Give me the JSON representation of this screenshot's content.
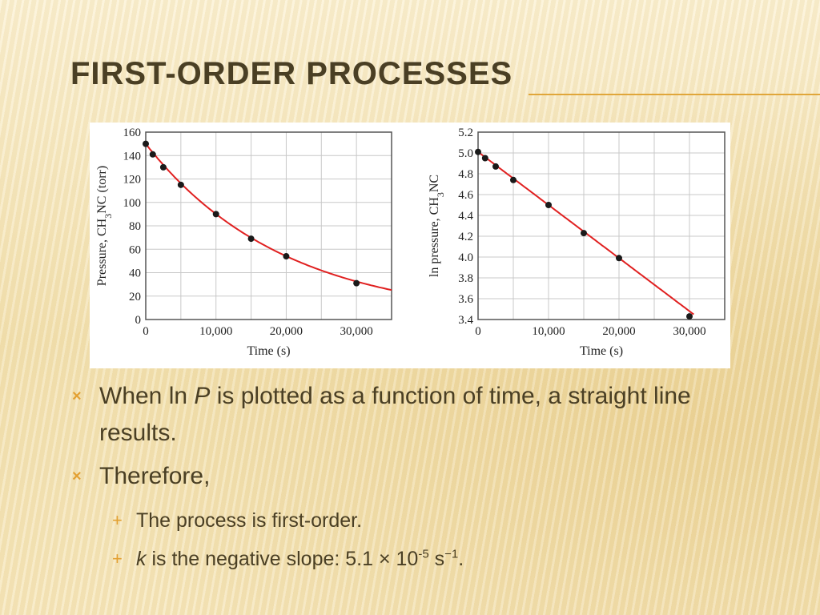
{
  "slide": {
    "title": "FIRST-ORDER PROCESSES",
    "colors": {
      "accent": "#e3a032",
      "title": "#4a3f24",
      "curve": "#e02020",
      "point": "#1a1a1a"
    }
  },
  "bullets": {
    "b1_pre": "When ln ",
    "b1_italic": "P",
    "b1_post": " is plotted as a function of time, a straight line results.",
    "b2": "Therefore,",
    "sub1": "The process is first-order.",
    "sub2_italic": "k",
    "sub2_text": " is the negative slope:  5.1 × 10",
    "sub2_exp": "-5",
    "sub2_unit": " s",
    "sub2_unit_exp": "−1",
    "sub2_end": ".",
    "marker": "×",
    "sub_marker": "+"
  },
  "chart_data": [
    {
      "type": "scatter",
      "xlabel": "Time (s)",
      "ylabel_main": "Pressure, CH",
      "ylabel_sub": "3",
      "ylabel_tail": "NC (torr)",
      "xlim": [
        0,
        35000
      ],
      "ylim": [
        0,
        160
      ],
      "x_ticks": [
        0,
        10000,
        20000,
        30000
      ],
      "x_tick_labels": [
        "0",
        "10,000",
        "20,000",
        "30,000"
      ],
      "y_ticks": [
        0,
        20,
        40,
        60,
        80,
        100,
        120,
        140,
        160
      ],
      "y_tick_labels": [
        "0",
        "20",
        "40",
        "60",
        "80",
        "100",
        "120",
        "140",
        "160"
      ],
      "grid": true,
      "points": {
        "x": [
          0,
          1000,
          2500,
          5000,
          10000,
          15000,
          20000,
          30000
        ],
        "y": [
          150,
          141,
          130,
          115,
          90,
          69,
          54,
          31
        ]
      },
      "curve": {
        "kind": "exponential",
        "a": 150,
        "k": 5.1e-05,
        "x_range": [
          0,
          35000
        ]
      }
    },
    {
      "type": "scatter",
      "xlabel": "Time (s)",
      "ylabel_main": "ln pressure, CH",
      "ylabel_sub": "3",
      "ylabel_tail": "NC",
      "xlim": [
        0,
        35000
      ],
      "ylim": [
        3.4,
        5.2
      ],
      "x_ticks": [
        0,
        10000,
        20000,
        30000
      ],
      "x_tick_labels": [
        "0",
        "10,000",
        "20,000",
        "30,000"
      ],
      "y_ticks": [
        3.4,
        3.6,
        3.8,
        4.0,
        4.2,
        4.4,
        4.6,
        4.8,
        5.0,
        5.2
      ],
      "y_tick_labels": [
        "3.4",
        "3.6",
        "3.8",
        "4.0",
        "4.2",
        "4.4",
        "4.6",
        "4.8",
        "5.0",
        "5.2"
      ],
      "grid": true,
      "points": {
        "x": [
          0,
          1000,
          2500,
          5000,
          10000,
          15000,
          20000,
          30000
        ],
        "y": [
          5.01,
          4.95,
          4.87,
          4.74,
          4.5,
          4.23,
          3.99,
          3.43
        ]
      },
      "curve": {
        "kind": "linear",
        "intercept": 5.01,
        "slope": -5.1e-05,
        "x_range": [
          0,
          30600
        ]
      }
    }
  ]
}
